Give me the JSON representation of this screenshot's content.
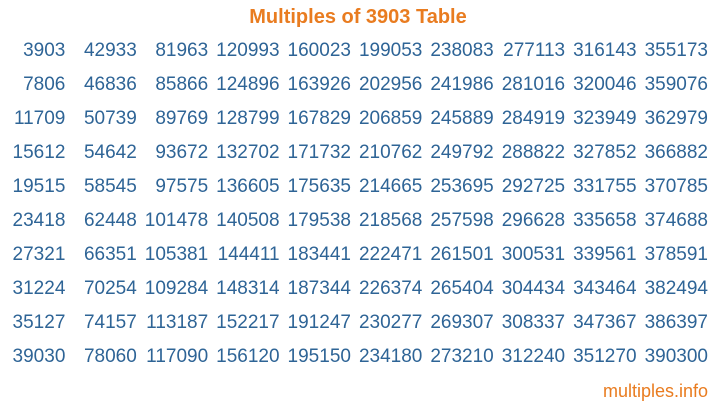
{
  "page": {
    "title": "Multiples of 3903 Table",
    "footer": {
      "link_label": "multiples.info"
    }
  },
  "colors": {
    "accent_orange": "#E97C20",
    "number_blue": "#2E6496",
    "background": "#FFFFFF"
  },
  "table": {
    "base_number": 3903,
    "columns": 10,
    "rows": [
      [
        3903,
        42933,
        81963,
        120993,
        160023,
        199053,
        238083,
        277113,
        316143,
        355173
      ],
      [
        7806,
        46836,
        85866,
        124896,
        163926,
        202956,
        241986,
        281016,
        320046,
        359076
      ],
      [
        11709,
        50739,
        89769,
        128799,
        167829,
        206859,
        245889,
        284919,
        323949,
        362979
      ],
      [
        15612,
        54642,
        93672,
        132702,
        171732,
        210762,
        249792,
        288822,
        327852,
        366882
      ],
      [
        19515,
        58545,
        97575,
        136605,
        175635,
        214665,
        253695,
        292725,
        331755,
        370785
      ],
      [
        23418,
        62448,
        101478,
        140508,
        179538,
        218568,
        257598,
        296628,
        335658,
        374688
      ],
      [
        27321,
        66351,
        105381,
        144411,
        183441,
        222471,
        261501,
        300531,
        339561,
        378591
      ],
      [
        31224,
        70254,
        109284,
        148314,
        187344,
        226374,
        265404,
        304434,
        343464,
        382494
      ],
      [
        35127,
        74157,
        113187,
        152217,
        191247,
        230277,
        269307,
        308337,
        347367,
        386397
      ],
      [
        39030,
        78060,
        117090,
        156120,
        195150,
        234180,
        273210,
        312240,
        351270,
        390300
      ]
    ]
  }
}
